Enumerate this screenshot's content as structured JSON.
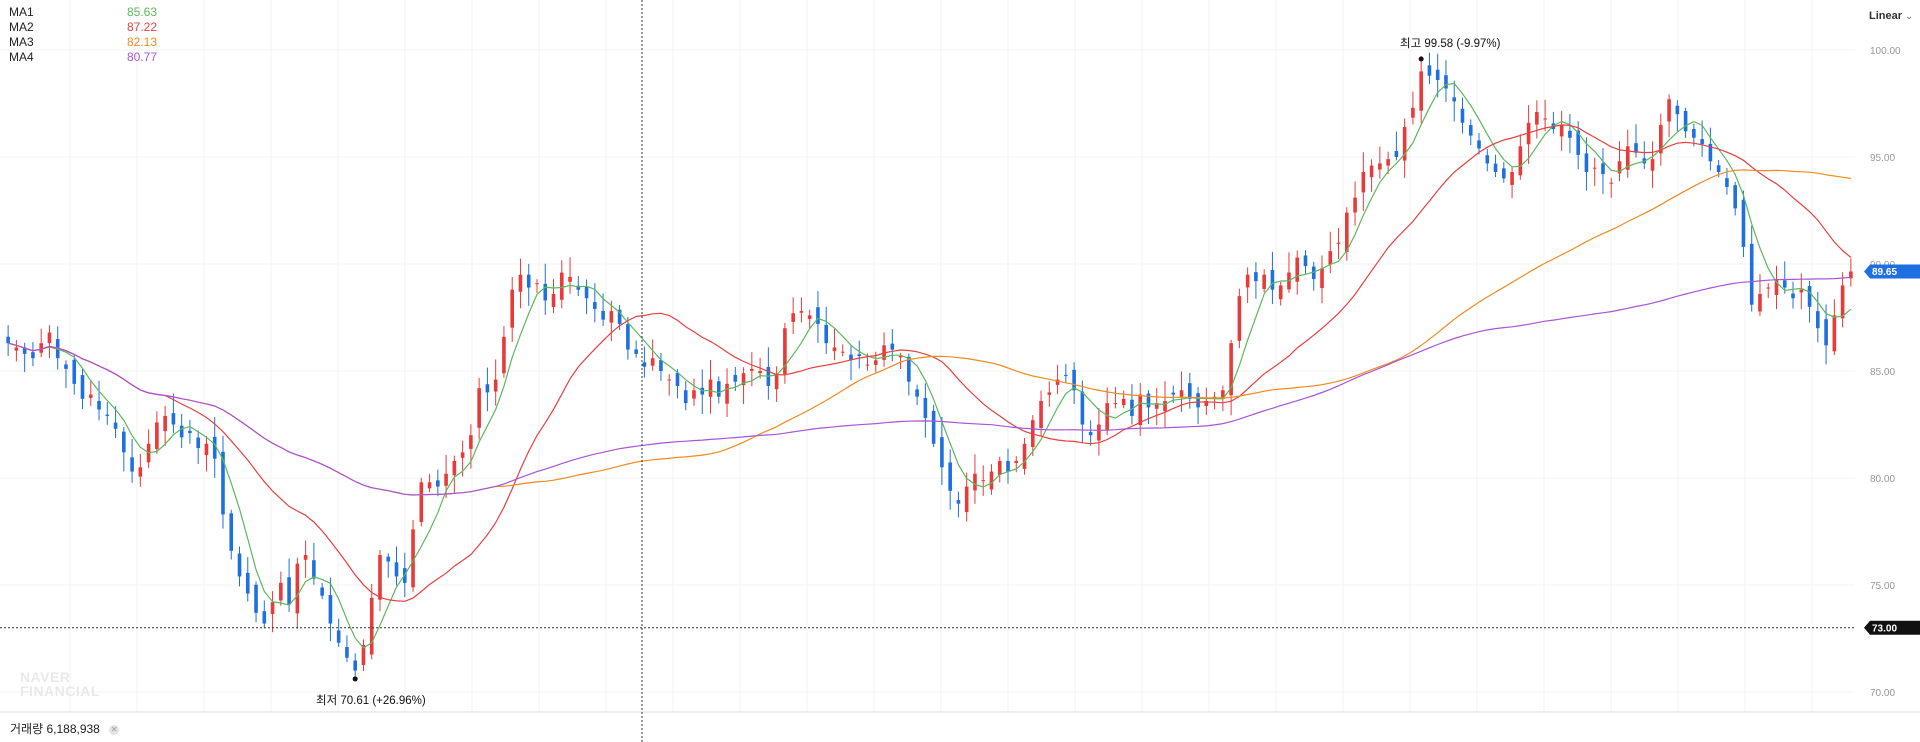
{
  "legend": [
    {
      "name": "MA1",
      "value": "85.63",
      "color": "#5cb85c"
    },
    {
      "name": "MA2",
      "value": "87.22",
      "color": "#e84040"
    },
    {
      "name": "MA3",
      "value": "82.13",
      "color": "#f28a21"
    },
    {
      "name": "MA4",
      "value": "80.77",
      "color": "#a855d8"
    }
  ],
  "scale_mode": "Linear",
  "volume": {
    "label": "거래량",
    "value": "6,188,938"
  },
  "watermark": {
    "line1": "NAVER",
    "line2": "FINANCIAL"
  },
  "annotations": {
    "high": "최고 99.58 (-9.97%)",
    "low": "최저 70.61 (+26.96%)"
  },
  "price_tags": {
    "last": "89.65",
    "crosshair": "73.00"
  },
  "colors": {
    "up": "#e93a3a",
    "down": "#1e6fe0",
    "last_tag": "#1e6fe0",
    "crosshair_tag": "#111111"
  },
  "chart_data": {
    "type": "candlestick",
    "y_axis": {
      "ticks": [
        "100.00",
        "95.00",
        "90.00",
        "85.00",
        "80.00",
        "75.00",
        "70.00"
      ],
      "range": [
        69.2,
        102.2
      ],
      "position": "right"
    },
    "high": {
      "value": 99.58,
      "change": "-9.97%"
    },
    "low": {
      "value": 70.61,
      "change": "+26.96%"
    },
    "last_price": 89.65,
    "crosshair_price": 73.0,
    "close_series": [
      86.3,
      86.1,
      85.8,
      85.6,
      86.3,
      86.8,
      85.6,
      85.1,
      84.4,
      83.7,
      83.9,
      83.2,
      82.9,
      82.3,
      81.2,
      80.3,
      80.5,
      81.6,
      82.6,
      82.9,
      82.5,
      81.9,
      82.1,
      81.4,
      81.6,
      80.9,
      78.3,
      76.6,
      75.4,
      74.6,
      73.7,
      73.2,
      74.2,
      75.1,
      74.1,
      76.0,
      76.4,
      75.3,
      74.5,
      73.2,
      72.3,
      71.6,
      71.0,
      72.2,
      74.4,
      76.4,
      76.1,
      75.4,
      75.1,
      77.6,
      79.8,
      79.8,
      79.6,
      80.2,
      80.8,
      81.2,
      82.0,
      84.2,
      84.0,
      84.6,
      86.6,
      88.8,
      89.5,
      88.9,
      89.1,
      88.3,
      88.6,
      89.6,
      89.4,
      88.8,
      88.4,
      87.9,
      87.4,
      87.8,
      87.2,
      86.0,
      85.8,
      85.2,
      85.6,
      85.0,
      84.6,
      84.3,
      83.5,
      84.1,
      83.9,
      84.6,
      83.8,
      84.4,
      84.5,
      84.9,
      85.1,
      85.0,
      84.3,
      84.8,
      87.0,
      87.7,
      87.8,
      87.6,
      87.2,
      86.3,
      86.1,
      85.9,
      85.5,
      85.7,
      85.3,
      85.5,
      86.2,
      86.0,
      85.7,
      84.5,
      83.8,
      82.8,
      81.6,
      80.5,
      79.4,
      78.8,
      79.6,
      80.2,
      79.9,
      80.3,
      80.8,
      80.3,
      80.8,
      81.6,
      82.7,
      83.6,
      84.0,
      84.6,
      84.8,
      84.1,
      82.5,
      82.0,
      82.5,
      83.5,
      83.5,
      83.7,
      82.9,
      83.9,
      83.3,
      83.5,
      83.6,
      83.9,
      84.1,
      83.7,
      83.3,
      83.6,
      83.8,
      84.1,
      86.3,
      88.5,
      89.5,
      89.2,
      89.5,
      88.8,
      89.0,
      89.6,
      90.3,
      89.9,
      89.3,
      89.8,
      90.6,
      91.0,
      92.4,
      93.1,
      94.3,
      94.6,
      94.7,
      94.9,
      95.0,
      96.4,
      97.3,
      99.0,
      98.8,
      98.6,
      98.2,
      97.6,
      96.6,
      96.0,
      95.4,
      94.7,
      94.3,
      94.0,
      94.3,
      95.5,
      96.6,
      97.1,
      96.8,
      96.3,
      96.5,
      95.9,
      95.1,
      94.3,
      94.5,
      94.2,
      93.8,
      94.8,
      95.5,
      95.2,
      94.7,
      94.9,
      96.5,
      97.7,
      97.0,
      96.2,
      95.9,
      95.6,
      94.8,
      94.3,
      93.6,
      92.6,
      90.8,
      88.1,
      88.6,
      88.9,
      89.3,
      88.9,
      88.4,
      88.8,
      88.0,
      87.0,
      86.2,
      87.6,
      89.0,
      89.65
    ],
    "series": [
      {
        "name": "MA1",
        "smoothing": 5
      },
      {
        "name": "MA2",
        "smoothing": 20
      },
      {
        "name": "MA3",
        "smoothing": 60
      },
      {
        "name": "MA4",
        "smoothing": 120
      }
    ]
  }
}
